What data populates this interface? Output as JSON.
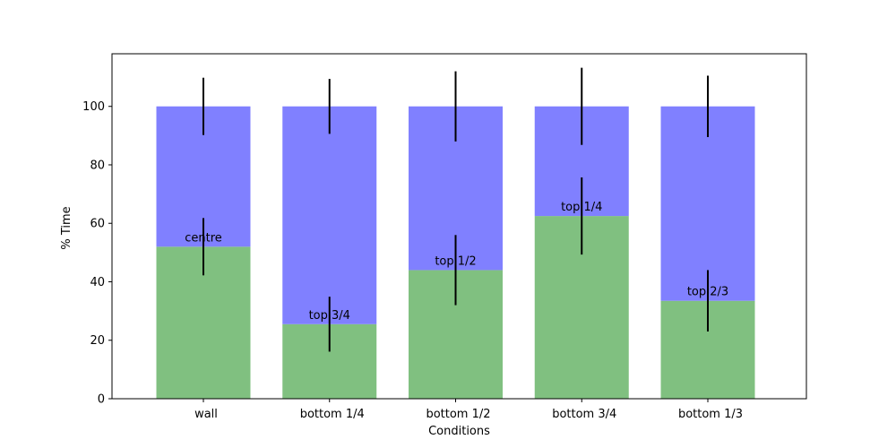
{
  "chart_data": {
    "type": "bar",
    "stacked": true,
    "title": "",
    "xlabel": "Conditions",
    "ylabel": "% Time",
    "ylim": [
      0,
      118
    ],
    "yticks": [
      0,
      20,
      40,
      60,
      80,
      100
    ],
    "grid": false,
    "categories": [
      "wall",
      "bottom 1/4",
      "bottom 1/2",
      "bottom 3/4",
      "bottom 1/3"
    ],
    "series": [
      {
        "color": "#80c080",
        "values": [
          52,
          25.5,
          44,
          62.5,
          33.5
        ],
        "labels": [
          "centre",
          "top 3/4",
          "top 1/2",
          "top 1/4",
          "top 2/3"
        ],
        "error": [
          9.8,
          9.4,
          12,
          13.2,
          10.5
        ]
      },
      {
        "color": "#8080ff",
        "values": [
          48,
          74.5,
          56,
          37.5,
          66.5
        ],
        "error": [
          9.8,
          9.4,
          12,
          13.2,
          10.5
        ]
      }
    ]
  }
}
